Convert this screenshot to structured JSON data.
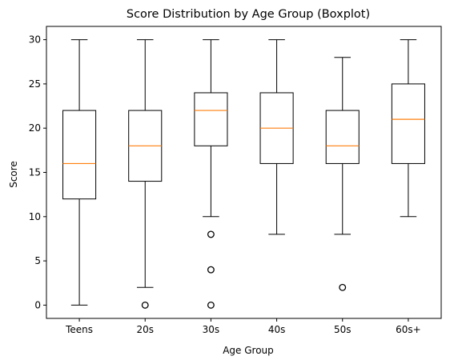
{
  "chart_data": {
    "type": "boxplot",
    "title": "Score Distribution by Age Group (Boxplot)",
    "xlabel": "Age Group",
    "ylabel": "Score",
    "ylim": [
      -1.5,
      31.5
    ],
    "yticks": [
      0,
      5,
      10,
      15,
      20,
      25,
      30
    ],
    "grid": false,
    "colors": {
      "box": "#000000",
      "median": "#ff7f0e",
      "flier": "#000000"
    },
    "categories": [
      "Teens",
      "20s",
      "30s",
      "40s",
      "50s",
      "60s+"
    ],
    "boxes": [
      {
        "category": "Teens",
        "whisker_low": 0,
        "q1": 12,
        "median": 16,
        "q3": 22,
        "whisker_high": 30,
        "outliers": []
      },
      {
        "category": "20s",
        "whisker_low": 2,
        "q1": 14,
        "median": 18,
        "q3": 22,
        "whisker_high": 30,
        "outliers": [
          0
        ]
      },
      {
        "category": "30s",
        "whisker_low": 10,
        "q1": 18,
        "median": 22,
        "q3": 24,
        "whisker_high": 30,
        "outliers": [
          8,
          4,
          0
        ]
      },
      {
        "category": "40s",
        "whisker_low": 8,
        "q1": 16,
        "median": 20,
        "q3": 24,
        "whisker_high": 30,
        "outliers": []
      },
      {
        "category": "50s",
        "whisker_low": 8,
        "q1": 16,
        "median": 18,
        "q3": 22,
        "whisker_high": 28,
        "outliers": [
          2
        ]
      },
      {
        "category": "60s+",
        "whisker_low": 10,
        "q1": 16,
        "median": 21,
        "q3": 25,
        "whisker_high": 30,
        "outliers": []
      }
    ]
  }
}
